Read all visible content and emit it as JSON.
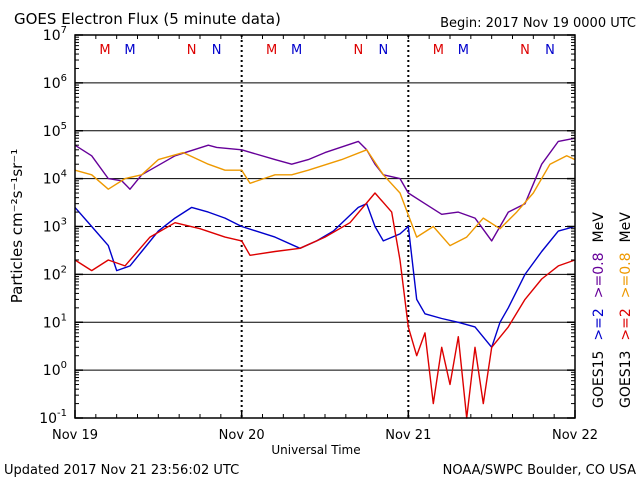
{
  "chart_data": {
    "type": "line",
    "title": "GOES Electron Flux (5 minute data)",
    "subtitle": "Begin: 2017 Nov 19 0000 UTC",
    "xlabel": "Universal Time",
    "ylabel": "Particles cm⁻²s⁻¹sr⁻¹",
    "yscale": "log",
    "ylim": [
      0.1,
      10000000
    ],
    "xlim": [
      0,
      3
    ],
    "x_unit": "days since 2017 Nov 19 0000 UTC",
    "x_tick_labels": [
      "Nov 19",
      "Nov 20",
      "Nov 21",
      "Nov 22"
    ],
    "y_tick_labels": [
      {
        "base": "10",
        "exp": "7"
      },
      {
        "base": "10",
        "exp": "6"
      },
      {
        "base": "10",
        "exp": "5"
      },
      {
        "base": "10",
        "exp": "4"
      },
      {
        "base": "10",
        "exp": "3"
      },
      {
        "base": "10",
        "exp": "2"
      },
      {
        "base": "10",
        "exp": "1"
      },
      {
        "base": "10",
        "exp": "0"
      },
      {
        "base": "10",
        "exp": "-1"
      }
    ],
    "reference_line": 1000,
    "grid": "horizontal lines at each decade; dotted vertical day separators",
    "markers": [
      {
        "label": "M",
        "x": 0.18,
        "color": "#dd0000"
      },
      {
        "label": "M",
        "x": 0.33,
        "color": "#0000cc"
      },
      {
        "label": "N",
        "x": 0.7,
        "color": "#dd0000"
      },
      {
        "label": "N",
        "x": 0.85,
        "color": "#0000cc"
      },
      {
        "label": "M",
        "x": 1.18,
        "color": "#dd0000"
      },
      {
        "label": "M",
        "x": 1.33,
        "color": "#0000cc"
      },
      {
        "label": "N",
        "x": 1.7,
        "color": "#dd0000"
      },
      {
        "label": "N",
        "x": 1.85,
        "color": "#0000cc"
      },
      {
        "label": "M",
        "x": 2.18,
        "color": "#dd0000"
      },
      {
        "label": "M",
        "x": 2.33,
        "color": "#0000cc"
      },
      {
        "label": "N",
        "x": 2.7,
        "color": "#dd0000"
      },
      {
        "label": "N",
        "x": 2.85,
        "color": "#0000cc"
      }
    ],
    "right_legend": {
      "groups": [
        {
          "name": "GOES15",
          "entries": [
            {
              "label": ">=2",
              "color": "#0000cc"
            },
            {
              "label": ">=0.8",
              "color": "#660099"
            },
            {
              "label": "MeV",
              "color": "#000000"
            }
          ]
        },
        {
          "name": "GOES13",
          "entries": [
            {
              "label": ">=2",
              "color": "#dd0000"
            },
            {
              "label": ">=0.8",
              "color": "#ee9900"
            },
            {
              "label": "MeV",
              "color": "#000000"
            }
          ]
        }
      ]
    },
    "series": [
      {
        "name": "GOES15 >=0.8 MeV",
        "color": "#660099",
        "x": [
          0,
          0.1,
          0.2,
          0.28,
          0.33,
          0.4,
          0.6,
          0.8,
          0.85,
          1.0,
          1.2,
          1.3,
          1.4,
          1.5,
          1.7,
          1.75,
          1.8,
          1.85,
          1.95,
          2.0,
          2.1,
          2.2,
          2.3,
          2.4,
          2.5,
          2.6,
          2.7,
          2.8,
          2.9,
          3.0
        ],
        "y": [
          50000,
          30000,
          10000,
          9000,
          6000,
          12000,
          30000,
          50000,
          45000,
          40000,
          25000,
          20000,
          25000,
          35000,
          60000,
          40000,
          20000,
          12000,
          10000,
          5000,
          3000,
          1800,
          2000,
          1500,
          500,
          2000,
          3000,
          20000,
          60000,
          70000
        ]
      },
      {
        "name": "GOES13 >=0.8 MeV",
        "color": "#ee9900",
        "x": [
          0,
          0.1,
          0.2,
          0.3,
          0.4,
          0.5,
          0.65,
          0.8,
          0.9,
          1.0,
          1.05,
          1.2,
          1.3,
          1.4,
          1.6,
          1.75,
          1.85,
          1.95,
          2.05,
          2.15,
          2.25,
          2.35,
          2.45,
          2.55,
          2.65,
          2.75,
          2.85,
          2.95,
          3.0
        ],
        "y": [
          15000,
          12000,
          6000,
          10000,
          12000,
          25000,
          35000,
          20000,
          15000,
          15000,
          8000,
          12000,
          12000,
          15000,
          25000,
          40000,
          12000,
          5000,
          600,
          1000,
          400,
          600,
          1500,
          900,
          2000,
          5000,
          20000,
          30000,
          25000
        ]
      },
      {
        "name": "GOES15 >=2 MeV",
        "color": "#0000cc",
        "x": [
          0,
          0.1,
          0.2,
          0.25,
          0.33,
          0.4,
          0.5,
          0.6,
          0.7,
          0.8,
          0.9,
          1.0,
          1.2,
          1.35,
          1.45,
          1.55,
          1.7,
          1.75,
          1.8,
          1.85,
          1.95,
          2.0,
          2.05,
          2.1,
          2.2,
          2.3,
          2.4,
          2.5,
          2.55,
          2.6,
          2.7,
          2.8,
          2.9,
          3.0
        ],
        "y": [
          2500,
          1000,
          400,
          120,
          150,
          300,
          800,
          1500,
          2500,
          2000,
          1500,
          1000,
          600,
          350,
          500,
          800,
          2500,
          3000,
          1000,
          500,
          700,
          1000,
          30,
          15,
          12,
          10,
          8,
          3,
          10,
          20,
          100,
          300,
          800,
          1000
        ]
      },
      {
        "name": "GOES13 >=2 MeV",
        "color": "#dd0000",
        "x": [
          0,
          0.1,
          0.2,
          0.3,
          0.45,
          0.6,
          0.75,
          0.9,
          1.0,
          1.05,
          1.2,
          1.35,
          1.5,
          1.65,
          1.8,
          1.9,
          1.95,
          2.0,
          2.05,
          2.1,
          2.15,
          2.2,
          2.25,
          2.3,
          2.35,
          2.4,
          2.45,
          2.5,
          2.6,
          2.7,
          2.8,
          2.9,
          3.0
        ],
        "y": [
          200,
          120,
          200,
          150,
          600,
          1200,
          900,
          600,
          500,
          250,
          300,
          350,
          600,
          1200,
          5000,
          2000,
          200,
          8,
          2,
          6,
          0.2,
          3,
          0.5,
          5,
          0.1,
          3,
          0.2,
          3,
          8,
          30,
          80,
          150,
          200
        ]
      }
    ]
  },
  "footer": {
    "left": "Updated 2017 Nov 21 23:56:02 UTC",
    "right": "NOAA/SWPC Boulder, CO USA"
  }
}
